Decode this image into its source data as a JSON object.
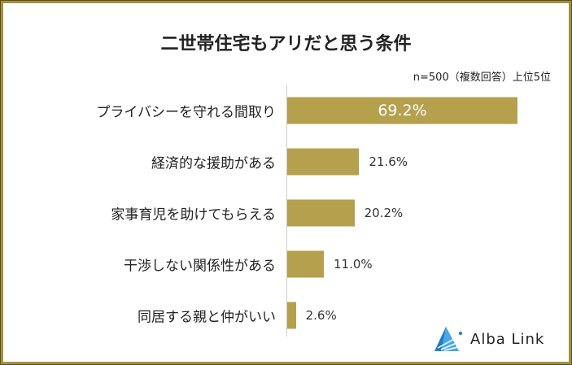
{
  "chart_data": {
    "type": "bar",
    "orientation": "horizontal",
    "title": "二世帯住宅もアリだと思う条件",
    "note": "n=500（複数回答）上位5位",
    "categories": [
      "プライバシーを守れる間取り",
      "経済的な援助がある",
      "家事育児を助けてもらえる",
      "干渉しない関係性がある",
      "同居する親と仲がいい"
    ],
    "values": [
      69.2,
      21.6,
      20.2,
      11.0,
      2.6
    ],
    "value_labels": [
      "69.2%",
      "21.6%",
      "20.2%",
      "11.0%",
      "2.6%"
    ],
    "unit": "%",
    "bar_color": "#b5a04e",
    "grid": false
  },
  "logo": {
    "text": "Alba Link"
  }
}
